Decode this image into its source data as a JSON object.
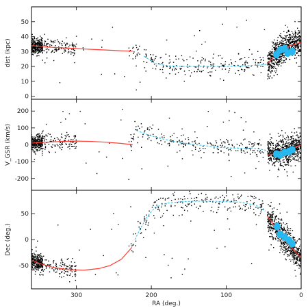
{
  "chart_data": {
    "type": "scatter",
    "x_axis": {
      "label": "RA (deg.)",
      "xlim": [
        360,
        0
      ],
      "ticks": [
        300,
        200,
        100,
        0
      ]
    },
    "panels": [
      {
        "id": "dist",
        "ylabel": "dist (kpc)",
        "ylim": [
          -2,
          60
        ],
        "yticks": [
          0,
          10,
          20,
          30,
          40,
          50
        ],
        "model_red": [
          [
            360,
            34
          ],
          [
            340,
            33
          ],
          [
            320,
            32.5
          ],
          [
            300,
            32
          ],
          [
            280,
            31.5
          ],
          [
            260,
            31
          ],
          [
            240,
            30.5
          ],
          [
            225,
            30.3
          ]
        ],
        "model_cyan": [
          [
            210,
            27
          ],
          [
            195,
            22
          ],
          [
            180,
            20.5
          ],
          [
            160,
            20
          ],
          [
            140,
            20
          ],
          [
            120,
            20
          ],
          [
            100,
            20
          ],
          [
            80,
            20.3
          ],
          [
            60,
            20.8
          ],
          [
            45,
            21.5
          ]
        ],
        "model_red_right": [
          [
            45,
            22
          ],
          [
            35,
            27
          ],
          [
            25,
            31
          ],
          [
            15,
            34
          ],
          [
            5,
            35.5
          ],
          [
            0,
            36
          ]
        ],
        "highlight_points": [
          [
            33,
            28
          ],
          [
            28,
            31
          ],
          [
            22,
            32
          ],
          [
            18,
            29
          ],
          [
            12,
            30
          ]
        ]
      },
      {
        "id": "vgsr",
        "ylabel": "V_GSR (km/s)",
        "ylim": [
          -270,
          270
        ],
        "yticks": [
          -200,
          -100,
          0,
          100,
          200
        ],
        "model_red": [
          [
            360,
            10
          ],
          [
            340,
            15
          ],
          [
            320,
            20
          ],
          [
            300,
            22
          ],
          [
            280,
            20
          ],
          [
            260,
            15
          ],
          [
            240,
            8
          ],
          [
            225,
            0
          ]
        ],
        "model_cyan": [
          [
            220,
            85
          ],
          [
            205,
            60
          ],
          [
            190,
            40
          ],
          [
            170,
            20
          ],
          [
            150,
            5
          ],
          [
            130,
            -5
          ],
          [
            110,
            -15
          ],
          [
            90,
            -20
          ],
          [
            70,
            -22
          ],
          [
            55,
            -25
          ],
          [
            45,
            -35
          ]
        ],
        "model_red_right": [
          [
            45,
            -60
          ],
          [
            35,
            -55
          ],
          [
            25,
            -45
          ],
          [
            15,
            -30
          ],
          [
            5,
            -10
          ],
          [
            0,
            0
          ]
        ],
        "highlight_points": [
          [
            33,
            -55
          ],
          [
            28,
            -60
          ],
          [
            22,
            -45
          ],
          [
            16,
            -40
          ],
          [
            12,
            -30
          ]
        ]
      },
      {
        "id": "dec",
        "ylabel": "Dec (deg.)",
        "ylim": [
          -95,
          95
        ],
        "yticks": [
          -50,
          0,
          50
        ],
        "model_red": [
          [
            360,
            -40
          ],
          [
            345,
            -48
          ],
          [
            330,
            -54
          ],
          [
            310,
            -58
          ],
          [
            290,
            -59
          ],
          [
            270,
            -56
          ],
          [
            255,
            -50
          ],
          [
            240,
            -38
          ],
          [
            232,
            -25
          ],
          [
            226,
            -15
          ]
        ],
        "model_cyan": [
          [
            222,
            0
          ],
          [
            215,
            20
          ],
          [
            205,
            45
          ],
          [
            195,
            62
          ],
          [
            180,
            70
          ],
          [
            160,
            73
          ],
          [
            140,
            74
          ],
          [
            120,
            74
          ],
          [
            100,
            73
          ],
          [
            80,
            72
          ],
          [
            60,
            66
          ],
          [
            48,
            55
          ]
        ],
        "model_red_right": [
          [
            45,
            45
          ],
          [
            40,
            35
          ],
          [
            32,
            20
          ],
          [
            25,
            5
          ],
          [
            18,
            -8
          ],
          [
            10,
            -20
          ],
          [
            5,
            -28
          ],
          [
            0,
            -35
          ]
        ],
        "highlight_points": [
          [
            32,
            25
          ],
          [
            28,
            10
          ],
          [
            22,
            5
          ],
          [
            16,
            -2
          ],
          [
            12,
            -8
          ]
        ]
      }
    ],
    "colors": {
      "points": "#000000",
      "red_model": "#ff3b2f",
      "cyan_model": "#34c6f4",
      "highlight": "#27b8f0",
      "frame": "#000000"
    }
  }
}
